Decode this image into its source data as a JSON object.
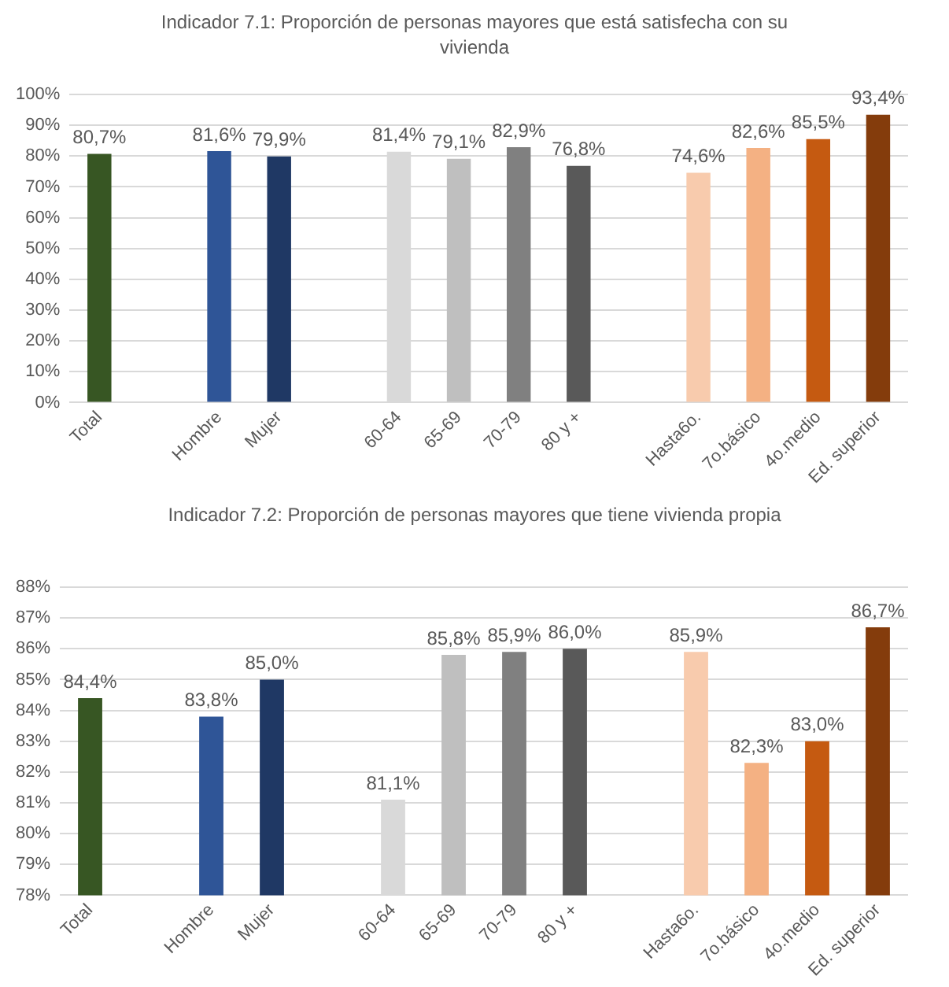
{
  "chart_data": [
    {
      "type": "bar",
      "title": "Indicador 7.1: Proporción de personas mayores que está satisfecha con su vivienda",
      "categories": [
        "Total",
        null,
        "Hombre",
        "Mujer",
        null,
        "60-64",
        "65-69",
        "70-79",
        "80 y +",
        null,
        "Hasta6o.",
        "7o.básico",
        "4o.medio",
        "Ed. superior"
      ],
      "values": [
        80.7,
        null,
        81.6,
        79.9,
        null,
        81.4,
        79.1,
        82.9,
        76.8,
        null,
        74.6,
        82.6,
        85.5,
        93.4
      ],
      "value_labels": [
        "80,7%",
        null,
        "81,6%",
        "79,9%",
        null,
        "81,4%",
        "79,1%",
        "82,9%",
        "76,8%",
        null,
        "74,6%",
        "82,6%",
        "85,5%",
        "93,4%"
      ],
      "colors": [
        "#375623",
        null,
        "#2f5597",
        "#1f3864",
        null,
        "#d9d9d9",
        "#bfbfbf",
        "#808080",
        "#595959",
        null,
        "#f8cbad",
        "#f4b183",
        "#c55a11",
        "#843c0c"
      ],
      "ylim": [
        0,
        100
      ],
      "yticks": [
        {
          "value": 0,
          "label": "0%"
        },
        {
          "value": 10,
          "label": "10%"
        },
        {
          "value": 20,
          "label": "20%"
        },
        {
          "value": 30,
          "label": "30%"
        },
        {
          "value": 40,
          "label": "40%"
        },
        {
          "value": 50,
          "label": "50%"
        },
        {
          "value": 60,
          "label": "60%"
        },
        {
          "value": 70,
          "label": "70%"
        },
        {
          "value": 80,
          "label": "80%"
        },
        {
          "value": 90,
          "label": "90%"
        },
        {
          "value": 100,
          "label": "100%"
        }
      ],
      "grid": "y"
    },
    {
      "type": "bar",
      "title": "Indicador 7.2: Proporción de personas mayores que tiene vivienda propia",
      "categories": [
        "Total",
        null,
        "Hombre",
        "Mujer",
        null,
        "60-64",
        "65-69",
        "70-79",
        "80 y +",
        null,
        "Hasta6o.",
        "7o.básico",
        "4o.medio",
        "Ed. superior"
      ],
      "values": [
        84.4,
        null,
        83.8,
        85.0,
        null,
        81.1,
        85.8,
        85.9,
        86.0,
        null,
        85.9,
        82.3,
        83.0,
        86.7
      ],
      "value_labels": [
        "84,4%",
        null,
        "83,8%",
        "85,0%",
        null,
        "81,1%",
        "85,8%",
        "85,9%",
        "86,0%",
        null,
        "85,9%",
        "82,3%",
        "83,0%",
        "86,7%"
      ],
      "colors": [
        "#375623",
        null,
        "#2f5597",
        "#1f3864",
        null,
        "#d9d9d9",
        "#bfbfbf",
        "#808080",
        "#595959",
        null,
        "#f8cbad",
        "#f4b183",
        "#c55a11",
        "#843c0c"
      ],
      "ylim": [
        78,
        88
      ],
      "yticks": [
        {
          "value": 78,
          "label": "78%"
        },
        {
          "value": 79,
          "label": "79%"
        },
        {
          "value": 80,
          "label": "80%"
        },
        {
          "value": 81,
          "label": "81%"
        },
        {
          "value": 82,
          "label": "82%"
        },
        {
          "value": 83,
          "label": "83%"
        },
        {
          "value": 84,
          "label": "84%"
        },
        {
          "value": 85,
          "label": "85%"
        },
        {
          "value": 86,
          "label": "86%"
        },
        {
          "value": 87,
          "label": "87%"
        },
        {
          "value": 88,
          "label": "88%"
        }
      ],
      "grid": "y"
    }
  ]
}
